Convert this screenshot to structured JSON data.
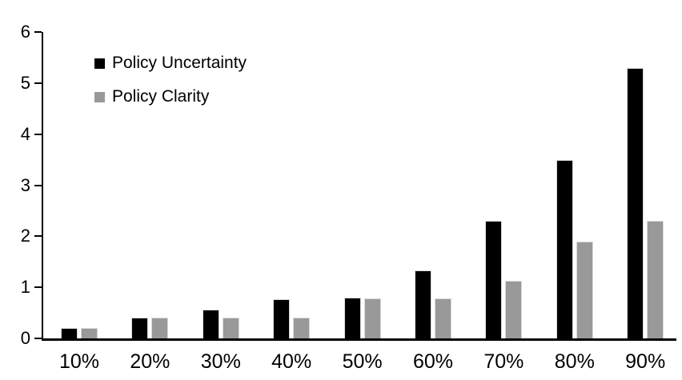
{
  "chart_data": {
    "type": "bar",
    "title": "",
    "categories": [
      "10%",
      "20%",
      "30%",
      "40%",
      "50%",
      "60%",
      "70%",
      "80%",
      "90%"
    ],
    "series": [
      {
        "name": "Policy Uncertainty",
        "color": "#000000",
        "values": [
          0.2,
          0.4,
          0.57,
          0.77,
          0.8,
          1.33,
          2.3,
          3.5,
          5.3
        ]
      },
      {
        "name": "Policy Clarity",
        "color": "#999999",
        "values": [
          0.2,
          0.4,
          0.4,
          0.4,
          0.78,
          0.78,
          1.13,
          1.9,
          2.3
        ]
      }
    ],
    "xlabel": "",
    "ylabel": "",
    "ylim": [
      0,
      6
    ],
    "yticks": [
      0,
      1,
      2,
      3,
      4,
      5,
      6
    ],
    "grid": false,
    "legend_position": "top-left",
    "axis_color": "#000000",
    "bar_border_color": "#d9d9d9"
  }
}
